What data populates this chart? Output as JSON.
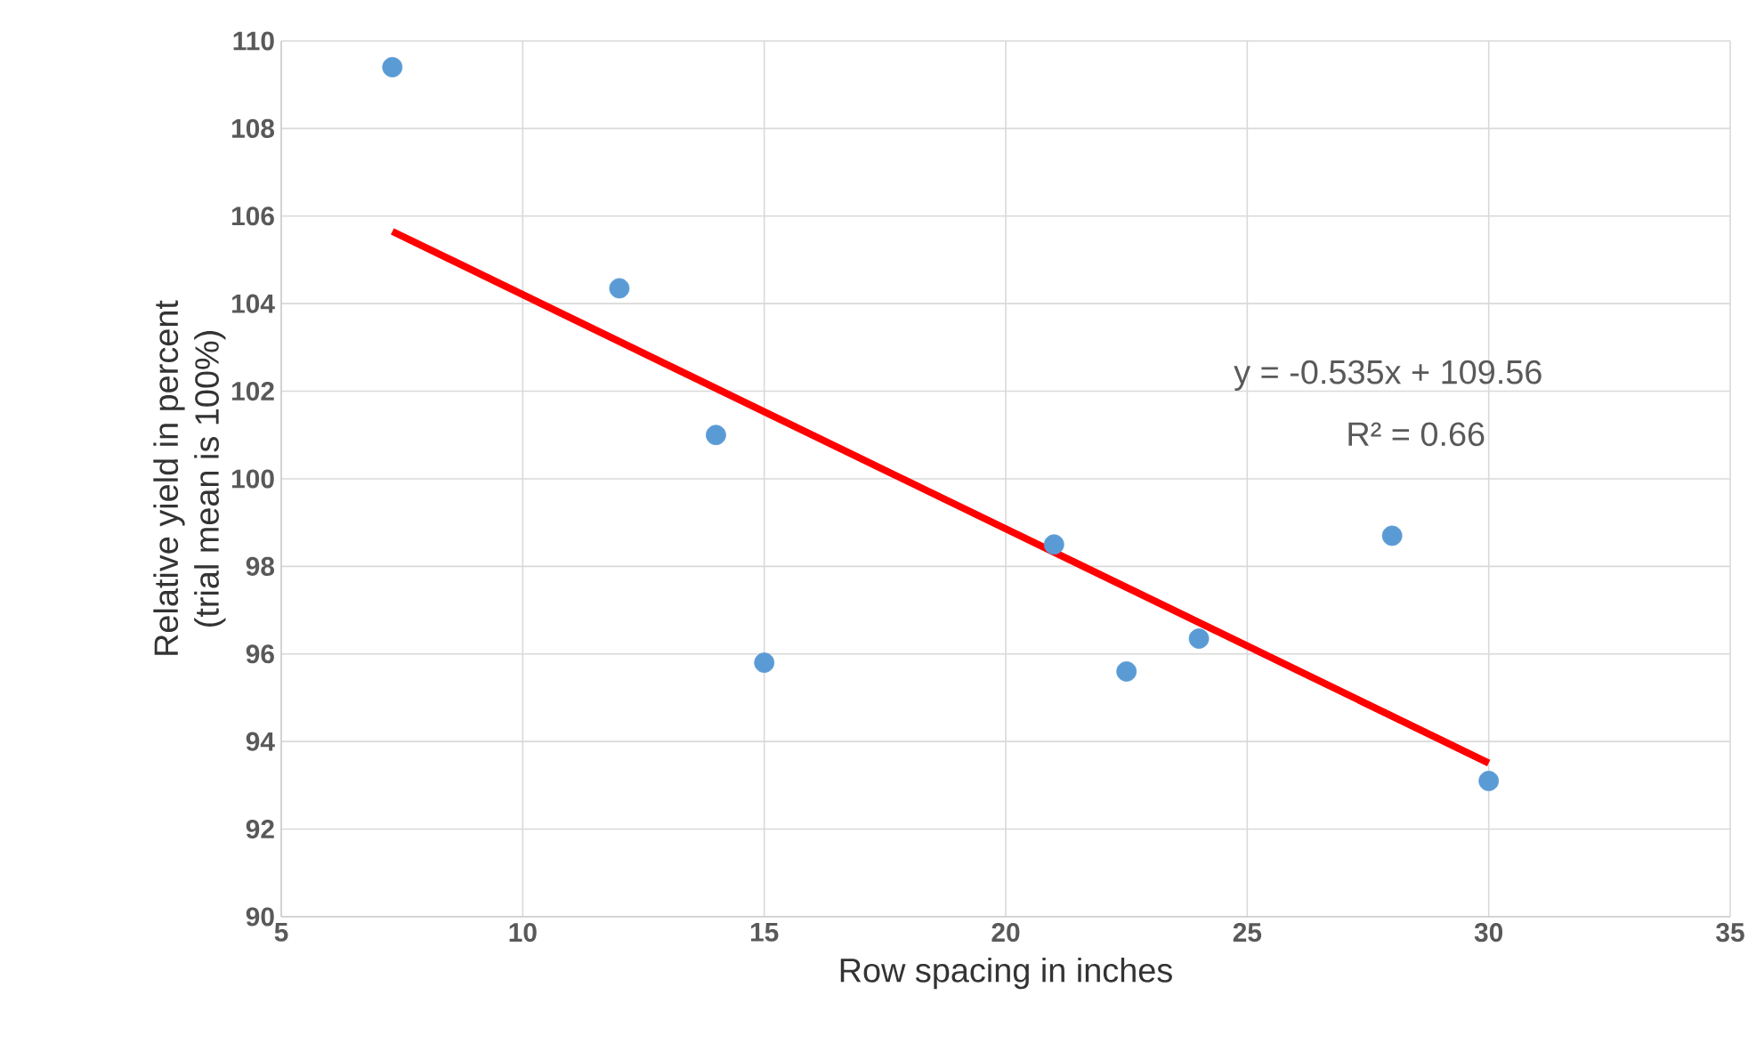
{
  "chart_data": {
    "type": "scatter",
    "xlabel": "Row spacing in inches",
    "ylabel": "Relative yield in percent (trial mean is 100%)",
    "xlim": [
      5,
      35
    ],
    "xticks": [
      5,
      10,
      15,
      20,
      25,
      30,
      35
    ],
    "ylim": [
      90,
      110
    ],
    "yticks": [
      90,
      92,
      94,
      96,
      98,
      100,
      102,
      104,
      106,
      108,
      110
    ],
    "grid": true,
    "marker": "circle",
    "series": [
      {
        "color": "#5b9bd5",
        "x": [
          7.3,
          12,
          14,
          15,
          21,
          22.5,
          24,
          28,
          30
        ],
        "values": [
          109.4,
          104.35,
          101.0,
          95.8,
          98.5,
          95.6,
          96.35,
          98.7,
          93.1
        ]
      },
      {
        "type": "line",
        "color": "#ff0000",
        "marker": "none",
        "x": [
          7.3,
          30
        ],
        "values": [
          105.65,
          93.51
        ]
      }
    ],
    "annotations": [
      "y = -0.535x + 109.56",
      "R² = 0.66"
    ]
  }
}
